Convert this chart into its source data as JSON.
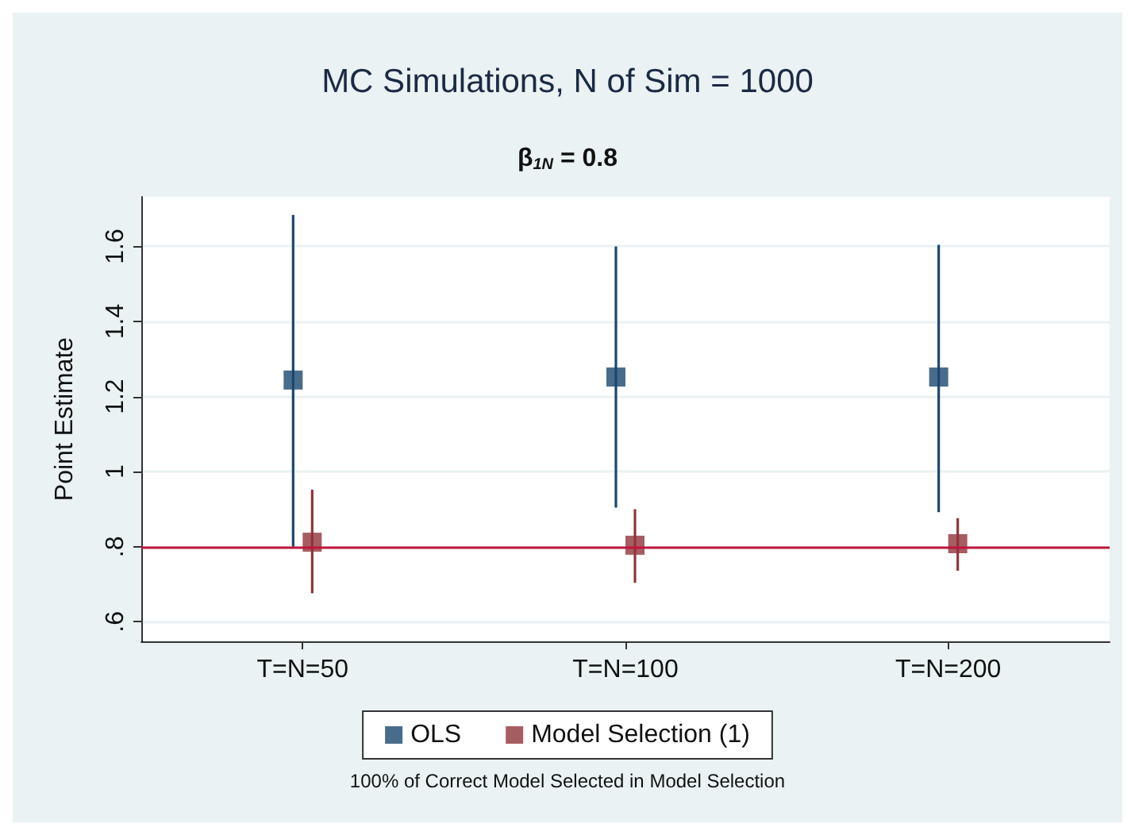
{
  "chart_data": {
    "type": "scatter",
    "title": "MC Simulations, N of Sim = 1000",
    "subtitle": "β$_{1N}$ = 0.8",
    "ylabel": "Point Estimate",
    "categories": [
      "T=N=50",
      "T=N=100",
      "T=N=200"
    ],
    "series": [
      {
        "name": "OLS",
        "color": "#1a476f",
        "values": [
          1.244,
          1.252,
          1.252
        ],
        "errors": [
          [
            0.8,
            1.684
          ],
          [
            0.904,
            1.6
          ],
          [
            0.892,
            1.604
          ]
        ]
      },
      {
        "name": "Model Selection (1)",
        "color": "#90353b",
        "values": [
          0.812,
          0.804,
          0.808
        ],
        "errors": [
          [
            0.676,
            0.952
          ],
          [
            0.704,
            0.9
          ],
          [
            0.736,
            0.876
          ]
        ]
      }
    ],
    "ylim": [
      0.548,
      1.732
    ],
    "yticks": [
      {
        "value": 0.6,
        "label": ".6"
      },
      {
        "value": 0.8,
        "label": ".8"
      },
      {
        "value": 1,
        "label": "1"
      },
      {
        "value": 1.2,
        "label": "1.2"
      },
      {
        "value": 1.4,
        "label": "1.4"
      },
      {
        "value": 1.6,
        "label": "1.6"
      }
    ],
    "ref_lines": [
      {
        "axis": "y",
        "value": 0.8,
        "color": "#c0143c"
      }
    ],
    "grid": "y",
    "legend": "bottom",
    "marker": "square",
    "annotations": [
      "100% of Correct Model Selected in Model Selection"
    ]
  }
}
